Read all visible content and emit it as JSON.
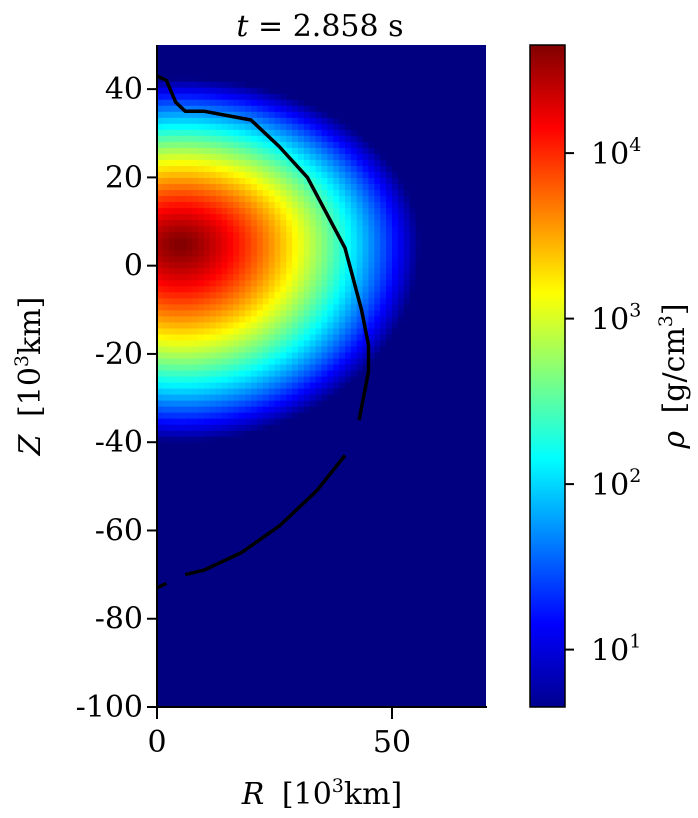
{
  "chart_data": {
    "type": "heatmap",
    "title_prefix": "t",
    "title_eq": "=",
    "title_value": "2.858",
    "title_unit": "s",
    "xlabel_var": "R",
    "xlabel_unit": "[10",
    "xlabel_exp": "3",
    "xlabel_unit_tail": "km]",
    "ylabel_var": "Z",
    "ylabel_unit": "[10",
    "ylabel_exp": "3",
    "ylabel_unit_tail": "km]",
    "xlim": [
      0,
      70
    ],
    "ylim": [
      -100,
      50
    ],
    "xticks": [
      0,
      50
    ],
    "xtick_labels": [
      "0",
      "50"
    ],
    "yticks": [
      40,
      20,
      0,
      -20,
      -40,
      -60,
      -80,
      -100
    ],
    "ytick_labels": [
      "40",
      "20",
      "0",
      "-20",
      "-40",
      "-60",
      "-80",
      "-100"
    ],
    "colorbar": {
      "label_var": "ρ",
      "label_unit": "[g/cm",
      "label_exp": "3",
      "label_tail": "]",
      "scale": "log",
      "range": [
        4.5,
        45000
      ],
      "ticks": [
        10,
        100,
        1000,
        10000
      ],
      "tick_bases": [
        "10",
        "10",
        "10",
        "10"
      ],
      "tick_exps": [
        "1",
        "2",
        "3",
        "4"
      ],
      "colormap": "jet"
    },
    "density_peak": {
      "R": 5,
      "Z": 5,
      "rho": 45000
    },
    "contour": [
      [
        0,
        43
      ],
      [
        2,
        42
      ],
      [
        4,
        37
      ],
      [
        6,
        35
      ],
      [
        10,
        35
      ],
      [
        15,
        34
      ],
      [
        20,
        33
      ],
      [
        26,
        27
      ],
      [
        32,
        20
      ],
      [
        36,
        12
      ],
      [
        40,
        4
      ],
      [
        41.5,
        -2
      ],
      [
        43.5,
        -10
      ],
      [
        45,
        -18
      ],
      [
        45,
        -24
      ],
      [
        43,
        -35
      ],
      [
        40,
        -43
      ],
      [
        34,
        -51
      ],
      [
        26,
        -59
      ],
      [
        18,
        -65
      ],
      [
        10,
        -69
      ],
      [
        6,
        -70
      ],
      [
        2,
        -72
      ],
      [
        0,
        -73
      ]
    ],
    "contour_color": "#000000"
  }
}
